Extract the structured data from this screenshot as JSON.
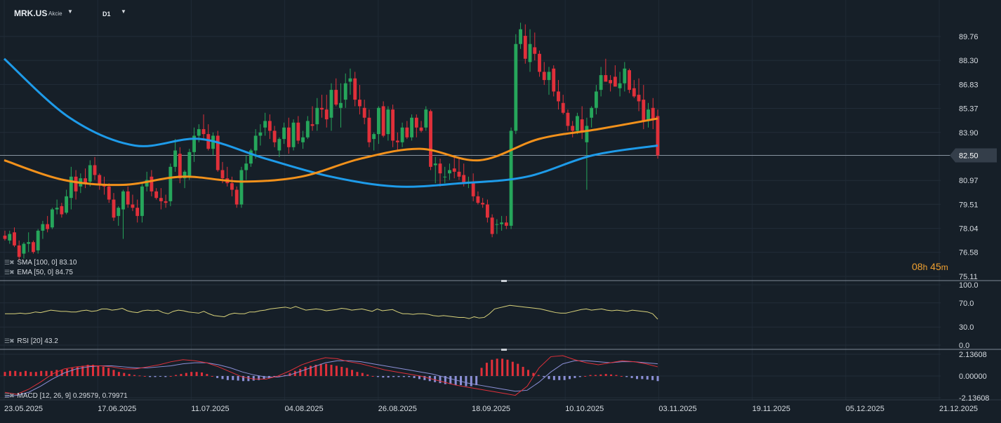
{
  "toolbar": {
    "symbol": "MRK.US",
    "instrument_type": "Akcie",
    "timeframe": "D1"
  },
  "indicators": {
    "sma_label": "SMA [100, 0] 83.10",
    "ema_label": "EMA [50, 0] 84.75",
    "rsi_label": "RSI [20] 43.2",
    "macd_label": "MACD [12, 26, 9] 0.29579, 0.79971"
  },
  "countdown": {
    "hours": "08",
    "h_unit": "h",
    "minutes": "45",
    "m_unit": "m"
  },
  "colors": {
    "background": "#161f28",
    "bull": "#26a65b",
    "bear": "#e0303a",
    "sma": "#1e9be9",
    "ema": "#f2911b",
    "rsi": "#d8d27a",
    "macd_line": "#e0303a",
    "signal_line": "#8b8fd6",
    "hist_pos": "#e0303a",
    "hist_neg": "#8b8fd6"
  },
  "chart_data": [
    {
      "type": "candlestick",
      "price_axis_labels": [
        "89.76",
        "88.30",
        "86.83",
        "85.37",
        "83.90",
        "82.50",
        "80.97",
        "79.51",
        "78.04",
        "76.58",
        "75.11"
      ],
      "price_range": [
        75.11,
        89.76
      ],
      "last_price": "82.50",
      "date_labels": [
        "23.05.2025",
        "17.06.2025",
        "11.07.2025",
        "04.08.2025",
        "26.08.2025",
        "18.09.2025",
        "10.10.2025",
        "03.11.2025",
        "19.11.2025",
        "05.12.2025",
        "21.12.2025"
      ],
      "candles": [
        [
          77.6,
          77.9,
          77.3,
          77.4
        ],
        [
          77.3,
          77.9,
          77.1,
          77.7
        ],
        [
          77.8,
          78.1,
          76.9,
          77.0
        ],
        [
          77.0,
          77.3,
          76.1,
          76.3
        ],
        [
          76.5,
          77.2,
          76.2,
          77.1
        ],
        [
          77.1,
          77.8,
          76.6,
          77.2
        ],
        [
          77.2,
          77.3,
          76.5,
          76.6
        ],
        [
          76.7,
          78.0,
          76.5,
          77.9
        ],
        [
          77.9,
          78.5,
          77.4,
          78.3
        ],
        [
          78.3,
          78.8,
          77.8,
          78.0
        ],
        [
          78.1,
          79.3,
          78.0,
          79.2
        ],
        [
          79.2,
          79.8,
          78.9,
          79.3
        ],
        [
          79.4,
          79.6,
          78.7,
          78.9
        ],
        [
          79.0,
          80.4,
          78.9,
          80.0
        ],
        [
          79.9,
          81.8,
          79.2,
          81.2
        ],
        [
          81.2,
          81.6,
          79.8,
          80.3
        ],
        [
          80.6,
          81.4,
          80.2,
          81.1
        ],
        [
          81.1,
          81.7,
          80.5,
          80.8
        ],
        [
          80.9,
          82.2,
          80.6,
          81.9
        ],
        [
          81.9,
          82.4,
          81.0,
          81.3
        ],
        [
          81.3,
          81.4,
          80.4,
          80.7
        ],
        [
          80.7,
          81.2,
          80.1,
          80.6
        ],
        [
          80.6,
          80.8,
          79.6,
          79.8
        ],
        [
          79.8,
          80.2,
          78.5,
          78.7
        ],
        [
          78.8,
          79.4,
          78.2,
          79.3
        ],
        [
          79.2,
          80.4,
          77.4,
          80.3
        ],
        [
          80.3,
          80.6,
          79.3,
          79.5
        ],
        [
          79.5,
          80.1,
          79.1,
          79.3
        ],
        [
          79.3,
          79.8,
          78.4,
          78.8
        ],
        [
          78.8,
          80.8,
          78.4,
          80.6
        ],
        [
          80.6,
          81.5,
          80.3,
          81.0
        ],
        [
          81.2,
          81.6,
          80.0,
          80.3
        ],
        [
          80.3,
          80.5,
          79.8,
          79.9
        ],
        [
          79.9,
          80.5,
          79.2,
          79.7
        ],
        [
          79.7,
          80.1,
          79.3,
          79.6
        ],
        [
          79.7,
          82.0,
          79.4,
          81.8
        ],
        [
          81.8,
          83.5,
          81.5,
          82.8
        ],
        [
          82.6,
          83.0,
          80.8,
          81.1
        ],
        [
          81.1,
          81.6,
          80.5,
          81.5
        ],
        [
          81.2,
          82.9,
          81.0,
          82.7
        ],
        [
          82.7,
          84.2,
          82.1,
          83.7
        ],
        [
          83.7,
          84.4,
          83.3,
          84.1
        ],
        [
          84.1,
          85.0,
          83.5,
          83.8
        ],
        [
          83.8,
          84.4,
          82.8,
          82.9
        ],
        [
          82.9,
          83.9,
          82.5,
          83.7
        ],
        [
          83.7,
          84.0,
          81.5,
          81.6
        ],
        [
          81.6,
          82.1,
          80.8,
          81.1
        ],
        [
          81.1,
          81.8,
          80.6,
          80.8
        ],
        [
          80.8,
          81.2,
          80.0,
          80.4
        ],
        [
          80.4,
          80.6,
          79.3,
          79.5
        ],
        [
          79.5,
          81.8,
          79.3,
          81.6
        ],
        [
          81.6,
          82.5,
          81.0,
          82.0
        ],
        [
          82.0,
          82.9,
          81.8,
          82.8
        ],
        [
          82.8,
          84.1,
          82.3,
          83.7
        ],
        [
          83.7,
          84.4,
          83.1,
          83.9
        ],
        [
          84.2,
          85.1,
          83.7,
          84.6
        ],
        [
          84.6,
          85.0,
          83.5,
          84.0
        ],
        [
          84.0,
          84.3,
          83.0,
          83.3
        ],
        [
          82.8,
          83.6,
          82.4,
          83.5
        ],
        [
          83.5,
          84.5,
          83.2,
          84.2
        ],
        [
          84.2,
          84.8,
          82.6,
          83.0
        ],
        [
          83.0,
          84.7,
          82.8,
          84.5
        ],
        [
          84.5,
          84.9,
          83.2,
          83.4
        ],
        [
          83.3,
          84.0,
          82.9,
          83.6
        ],
        [
          83.6,
          84.9,
          83.5,
          84.6
        ],
        [
          84.4,
          85.5,
          84.0,
          84.3
        ],
        [
          84.4,
          86.0,
          84.0,
          85.4
        ],
        [
          85.4,
          86.2,
          84.8,
          85.3
        ],
        [
          85.3,
          86.2,
          84.2,
          84.7
        ],
        [
          84.8,
          86.9,
          84.0,
          86.5
        ],
        [
          86.5,
          87.2,
          85.5,
          85.6
        ],
        [
          85.4,
          86.9,
          84.2,
          85.7
        ],
        [
          85.9,
          87.5,
          85.4,
          86.9
        ],
        [
          87.0,
          87.8,
          86.2,
          87.2
        ],
        [
          87.2,
          87.6,
          85.5,
          85.9
        ],
        [
          85.9,
          86.8,
          85.0,
          85.5
        ],
        [
          85.4,
          85.9,
          84.4,
          84.8
        ],
        [
          84.8,
          85.3,
          83.0,
          83.3
        ],
        [
          83.5,
          83.9,
          82.8,
          83.8
        ],
        [
          83.8,
          85.5,
          83.2,
          85.4
        ],
        [
          85.5,
          85.8,
          83.6,
          83.7
        ],
        [
          83.8,
          85.5,
          83.4,
          85.3
        ],
        [
          85.3,
          85.6,
          83.0,
          83.4
        ],
        [
          83.4,
          83.9,
          82.8,
          83.3
        ],
        [
          83.3,
          84.5,
          83.0,
          84.2
        ],
        [
          84.2,
          84.6,
          83.5,
          83.6
        ],
        [
          83.6,
          85.0,
          83.4,
          84.8
        ],
        [
          84.8,
          85.0,
          83.6,
          84.2
        ],
        [
          84.2,
          84.6,
          83.9,
          84.0
        ],
        [
          84.2,
          85.5,
          84.0,
          85.3
        ],
        [
          85.2,
          85.3,
          81.6,
          81.8
        ],
        [
          81.9,
          82.4,
          80.8,
          82.0
        ],
        [
          82.0,
          82.3,
          80.6,
          81.4
        ],
        [
          81.2,
          81.8,
          80.8,
          81.2
        ],
        [
          81.4,
          82.0,
          81.0,
          81.6
        ],
        [
          81.7,
          82.4,
          81.1,
          81.5
        ],
        [
          81.5,
          82.3,
          81.0,
          81.2
        ],
        [
          81.3,
          82.0,
          80.6,
          80.8
        ],
        [
          80.8,
          81.2,
          80.5,
          80.9
        ],
        [
          80.9,
          81.4,
          79.7,
          80.0
        ],
        [
          80.0,
          80.3,
          79.5,
          79.6
        ],
        [
          79.6,
          79.9,
          79.3,
          79.5
        ],
        [
          79.5,
          79.8,
          78.4,
          78.7
        ],
        [
          78.7,
          78.9,
          77.5,
          77.7
        ],
        [
          78.3,
          78.6,
          77.7,
          78.3
        ],
        [
          78.3,
          78.8,
          77.9,
          78.4
        ],
        [
          78.4,
          78.8,
          78.0,
          78.2
        ],
        [
          78.2,
          84.2,
          78.0,
          84.0
        ],
        [
          84.0,
          89.9,
          83.8,
          89.3
        ],
        [
          89.3,
          90.6,
          89.0,
          90.2
        ],
        [
          89.8,
          90.5,
          88.1,
          88.4
        ],
        [
          88.2,
          90.2,
          87.6,
          89.3
        ],
        [
          89.1,
          90.0,
          88.3,
          88.7
        ],
        [
          88.7,
          88.9,
          87.3,
          87.6
        ],
        [
          87.6,
          88.2,
          86.8,
          87.1
        ],
        [
          87.1,
          87.9,
          86.2,
          87.6
        ],
        [
          87.8,
          88.0,
          86.1,
          86.4
        ],
        [
          86.4,
          87.1,
          85.3,
          85.8
        ],
        [
          85.7,
          86.2,
          85.0,
          85.1
        ],
        [
          85.1,
          85.3,
          84.0,
          84.3
        ],
        [
          84.3,
          84.6,
          83.6,
          84.0
        ],
        [
          84.0,
          85.1,
          83.8,
          84.9
        ],
        [
          84.7,
          85.5,
          83.5,
          83.9
        ],
        [
          83.3,
          84.8,
          80.4,
          84.3
        ],
        [
          84.8,
          85.5,
          84.2,
          85.4
        ],
        [
          85.4,
          86.8,
          85.0,
          86.4
        ],
        [
          86.5,
          87.9,
          86.1,
          87.4
        ],
        [
          87.4,
          88.4,
          87.0,
          87.0
        ],
        [
          87.1,
          87.4,
          86.4,
          86.9
        ],
        [
          87.3,
          88.0,
          86.7,
          86.7
        ],
        [
          86.6,
          87.6,
          86.1,
          86.9
        ],
        [
          86.9,
          88.2,
          86.4,
          87.8
        ],
        [
          87.7,
          87.8,
          86.3,
          86.5
        ],
        [
          86.6,
          87.1,
          86.0,
          86.1
        ],
        [
          86.2,
          87.2,
          85.2,
          85.8
        ],
        [
          85.9,
          86.8,
          84.1,
          84.6
        ],
        [
          84.6,
          85.7,
          84.2,
          85.3
        ],
        [
          85.4,
          86.0,
          84.1,
          84.7
        ],
        [
          84.9,
          85.3,
          82.3,
          82.5
        ]
      ],
      "sma_values": [
        88.4,
        84.8,
        83.1,
        83.5,
        82.3,
        81.2,
        80.6,
        80.8,
        81.2,
        82.5,
        83.1
      ],
      "ema_values": [
        82.2,
        81.0,
        80.7,
        81.2,
        80.9,
        81.2,
        82.3,
        82.9,
        82.2,
        83.5,
        84.1,
        84.75
      ]
    },
    {
      "type": "line",
      "name": "RSI [20]",
      "axis_labels": [
        "100.0",
        "70.0",
        "30.0",
        "0.0"
      ],
      "range": [
        0,
        100
      ],
      "values": [
        52,
        52,
        52,
        53,
        52,
        53,
        55,
        54,
        56,
        58,
        57,
        56,
        56,
        55,
        55,
        57,
        58,
        56,
        57,
        60,
        60,
        58,
        59,
        61,
        57,
        55,
        54,
        57,
        58,
        57,
        58,
        54,
        52,
        56,
        58,
        57,
        55,
        54,
        53,
        56,
        52,
        49,
        48,
        47,
        51,
        53,
        52,
        52,
        55,
        55,
        57,
        58,
        60,
        61,
        62,
        63,
        61,
        64,
        61,
        58,
        59,
        60,
        59,
        57,
        58,
        59,
        61,
        60,
        58,
        59,
        60,
        58,
        56,
        60,
        57,
        58,
        59,
        55,
        52,
        52,
        51,
        52,
        52,
        51,
        49,
        48,
        49,
        48,
        47,
        46,
        46,
        44,
        47,
        45,
        46,
        52,
        60,
        62,
        64,
        66,
        65,
        64,
        63,
        62,
        61,
        60,
        58,
        56,
        54,
        53,
        53,
        55,
        57,
        59,
        60,
        58,
        59,
        60,
        58,
        57,
        58,
        57,
        56,
        58,
        57,
        56,
        55,
        52,
        43
      ]
    },
    {
      "type": "bar+line",
      "name": "MACD [12, 26, 9]",
      "axis_labels": [
        "2.13608",
        "0.00000",
        "-2.13608"
      ],
      "range": [
        -2.13608,
        2.13608
      ],
      "histogram": [
        0.4,
        0.5,
        0.5,
        0.4,
        0.5,
        0.4,
        0.4,
        0.5,
        0.5,
        0.5,
        0.6,
        0.6,
        0.7,
        0.8,
        0.9,
        1.0,
        1.1,
        1.1,
        1.0,
        0.9,
        0.8,
        0.6,
        0.4,
        0.3,
        0.2,
        0.1,
        0.05,
        0.0,
        -0.1,
        -0.1,
        -0.05,
        -0.1,
        0.0,
        0.1,
        0.2,
        0.3,
        0.4,
        0.4,
        0.35,
        0.2,
        0.0,
        -0.2,
        -0.3,
        -0.4,
        -0.4,
        -0.45,
        -0.5,
        -0.5,
        -0.45,
        -0.4,
        -0.3,
        -0.2,
        -0.1,
        0.0,
        0.1,
        0.3,
        0.5,
        0.7,
        0.9,
        1.0,
        1.1,
        1.2,
        1.2,
        1.1,
        1.0,
        0.9,
        0.8,
        0.6,
        0.4,
        0.3,
        0.15,
        0.0,
        -0.1,
        -0.15,
        -0.15,
        -0.1,
        -0.1,
        -0.1,
        -0.1,
        -0.2,
        -0.3,
        -0.4,
        -0.5,
        -0.6,
        -0.7,
        -0.8,
        -0.8,
        -0.9,
        -0.9,
        -1.0,
        -1.0,
        -0.9,
        0.8,
        1.3,
        1.6,
        1.7,
        1.7,
        1.6,
        1.4,
        1.2,
        0.9,
        0.6,
        0.3,
        0.1,
        -0.1,
        -0.3,
        -0.4,
        -0.4,
        -0.4,
        -0.3,
        -0.2,
        -0.1,
        0.0,
        0.1,
        0.1,
        0.15,
        0.2,
        0.15,
        0.1,
        0.0,
        -0.1,
        -0.2,
        -0.3,
        -0.3,
        -0.35,
        -0.4,
        -0.5
      ],
      "macd_line": [
        -1.6,
        -1.8,
        -1.3,
        -0.6,
        0.2,
        0.7,
        0.9,
        1.0,
        1.0,
        0.9,
        0.7,
        0.7,
        0.9,
        1.1,
        1.4,
        1.6,
        1.5,
        1.3,
        0.9,
        0.4,
        -0.1,
        -0.3,
        -0.3,
        0.0,
        0.5,
        1.1,
        1.5,
        1.8,
        1.7,
        1.4,
        1.2,
        0.9,
        0.6,
        0.4,
        0.2,
        0.0,
        -0.3,
        -0.6,
        -0.9,
        -1.1,
        -1.3,
        -1.5,
        -1.7,
        -1.9,
        -1.0,
        0.8,
        1.9,
        2.0,
        1.6,
        1.3,
        1.1,
        1.3,
        1.5,
        1.4,
        1.2,
        0.9
      ],
      "signal_line": [
        -2.0,
        -1.9,
        -1.6,
        -1.0,
        -0.3,
        0.3,
        0.7,
        0.9,
        1.0,
        1.0,
        0.9,
        0.8,
        0.8,
        0.9,
        1.0,
        1.2,
        1.3,
        1.3,
        1.1,
        0.8,
        0.4,
        0.1,
        -0.1,
        -0.1,
        0.1,
        0.5,
        0.9,
        1.3,
        1.5,
        1.5,
        1.4,
        1.2,
        1.0,
        0.8,
        0.6,
        0.4,
        0.2,
        -0.1,
        -0.4,
        -0.7,
        -0.9,
        -1.1,
        -1.3,
        -1.5,
        -1.4,
        -0.6,
        0.4,
        1.2,
        1.5,
        1.5,
        1.4,
        1.3,
        1.4,
        1.4,
        1.3,
        1.2
      ]
    }
  ]
}
